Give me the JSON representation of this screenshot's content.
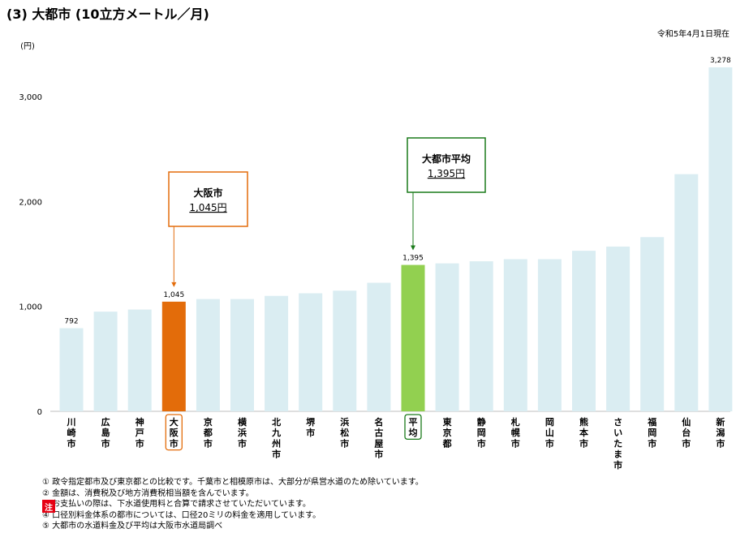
{
  "title": "(3) 大都市 (10立方メートル／月)",
  "date_note": "令和5年4月1日現在",
  "chart_data": {
    "type": "bar",
    "ylabel": "(円)",
    "ylim": [
      0,
      3400
    ],
    "yticks": [
      0,
      1000,
      2000,
      3000
    ],
    "ytick_labels": [
      "0",
      "1,000",
      "2,000",
      "3,000"
    ],
    "grid": false,
    "categories": [
      "川崎市",
      "広島市",
      "神戸市",
      "大阪市",
      "京都市",
      "横浜市",
      "北九州市",
      "堺市",
      "浜松市",
      "名古屋市",
      "平均",
      "東京都",
      "静岡市",
      "札幌市",
      "岡山市",
      "熊本市",
      "さいたま市",
      "福岡市",
      "仙台市",
      "新潟市"
    ],
    "values": [
      792,
      950,
      970,
      1045,
      1070,
      1070,
      1100,
      1125,
      1150,
      1225,
      1395,
      1410,
      1430,
      1450,
      1450,
      1530,
      1570,
      1660,
      2260,
      3278
    ],
    "value_labels": [
      {
        "index": 0,
        "text": "792"
      },
      {
        "index": 3,
        "text": "1,045"
      },
      {
        "index": 10,
        "text": "1,395"
      },
      {
        "index": 19,
        "text": "3,278"
      }
    ],
    "colors": {
      "default": "#daedf2",
      "osaka": "#e36c0a",
      "average": "#92d050",
      "osaka_box": "#e36c0a",
      "average_box": "#1a7a1a"
    },
    "callouts": [
      {
        "index": 3,
        "line1": "大阪市",
        "line2": "1,045円"
      },
      {
        "index": 10,
        "line1": "大都市平均",
        "line2": "1,395円"
      }
    ]
  },
  "notes": {
    "badge": "注",
    "items": [
      "① 政令指定都市及び東京都との比較です。千葉市と相模原市は、大部分が県営水道のため除いています。",
      "② 金額は、消費税及び地方消費税相当額を含んでいます。",
      "③ お支払いの際は、下水道使用料と合算で請求させていただいています。",
      "④ 口径別料金体系の都市については、口径20ミリの料金を適用しています。",
      "⑤ 大都市の水道料金及び平均は大阪市水道局調べ"
    ]
  }
}
